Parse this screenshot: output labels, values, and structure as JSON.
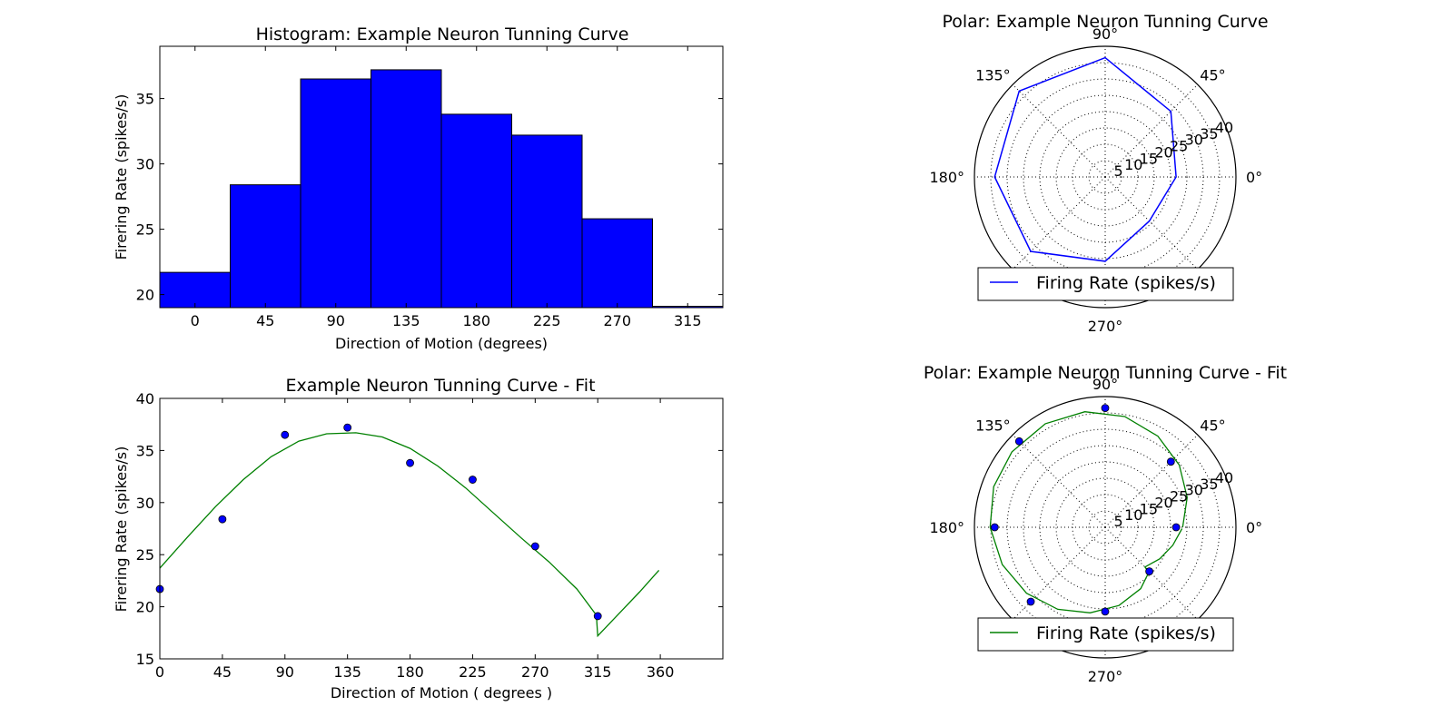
{
  "chart_data": [
    {
      "type": "bar",
      "title": "Histogram: Example Neuron Tunning Curve",
      "xlabel": "Direction of Motion (degrees)",
      "ylabel": "Firering Rate (spikes/s)",
      "categories": [
        0,
        45,
        90,
        135,
        180,
        225,
        270,
        315
      ],
      "values": [
        21.7,
        28.4,
        36.5,
        37.2,
        33.8,
        32.2,
        25.8,
        19.1
      ],
      "bar_color": "#0000ff",
      "ylim": [
        19,
        39
      ],
      "yticks": [
        20,
        25,
        30,
        35
      ],
      "xticks": [
        "0",
        "45",
        "90",
        "135",
        "180",
        "225",
        "270",
        "315"
      ]
    },
    {
      "type": "polar-line",
      "title": "Polar: Example Neuron Tunning Curve",
      "angles_deg": [
        0,
        45,
        90,
        135,
        180,
        225,
        270,
        315
      ],
      "radii": [
        21.7,
        28.4,
        36.5,
        37.2,
        33.8,
        32.2,
        25.8,
        19.1
      ],
      "line_color": "#0000ff",
      "rmax": 40,
      "rticks": [
        "5",
        "10",
        "15",
        "20",
        "25",
        "30",
        "35",
        "40"
      ],
      "angle_labels": [
        "0°",
        "45°",
        "90°",
        "135°",
        "180°",
        "270°"
      ],
      "legend": {
        "label": "Firing Rate (spikes/s)",
        "loc": "lower center"
      }
    },
    {
      "type": "line+scatter",
      "title": "Example Neuron Tunning Curve - Fit",
      "xlabel": "Direction of Motion ( degrees )",
      "ylabel": "Firering Rate (spikes/s)",
      "scatter": {
        "x": [
          0,
          45,
          90,
          135,
          180,
          225,
          270,
          315
        ],
        "y": [
          21.7,
          28.4,
          36.5,
          37.2,
          33.8,
          32.2,
          25.8,
          19.1
        ],
        "color": "#0000ff"
      },
      "fit": {
        "x": [
          0,
          20,
          40,
          60,
          80,
          100,
          120,
          141,
          160,
          180,
          200,
          220,
          240,
          260,
          280,
          300,
          314,
          315,
          330,
          345,
          359
        ],
        "y": [
          23.7,
          26.7,
          29.6,
          32.2,
          34.4,
          35.9,
          36.6,
          36.7,
          36.3,
          35.2,
          33.5,
          31.4,
          29.0,
          26.6,
          24.3,
          21.7,
          19.2,
          17.2,
          19.3,
          21.4,
          23.5
        ],
        "color": "#008000"
      },
      "xlim": [
        0,
        405
      ],
      "ylim": [
        15,
        40
      ],
      "xticks": [
        "0",
        "45",
        "90",
        "135",
        "180",
        "225",
        "270",
        "315",
        "360"
      ],
      "yticks": [
        "15",
        "20",
        "25",
        "30",
        "35",
        "40"
      ]
    },
    {
      "type": "polar-scatter+fit",
      "title": "Polar: Example Neuron Tunning Curve - Fit",
      "scatter": {
        "angles_deg": [
          0,
          45,
          90,
          135,
          180,
          225,
          270,
          315
        ],
        "radii": [
          21.7,
          28.4,
          36.5,
          37.2,
          33.8,
          32.2,
          25.8,
          19.1
        ],
        "color": "#0000ff"
      },
      "fit": {
        "angles_deg": [
          0,
          20,
          40,
          60,
          80,
          100,
          120,
          141,
          160,
          180,
          200,
          220,
          240,
          260,
          280,
          300,
          314,
          315,
          330,
          345,
          359
        ],
        "radii": [
          23.7,
          26.7,
          29.6,
          32.2,
          34.4,
          35.9,
          36.6,
          36.7,
          36.3,
          35.2,
          33.5,
          31.4,
          29.0,
          26.6,
          24.3,
          21.7,
          19.2,
          17.2,
          19.3,
          21.4,
          23.5
        ],
        "color": "#008000"
      },
      "rmax": 40,
      "rticks": [
        "5",
        "10",
        "15",
        "20",
        "25",
        "30",
        "35",
        "40"
      ],
      "angle_labels": [
        "0°",
        "45°",
        "90°",
        "135°",
        "180°",
        "270°"
      ],
      "legend": {
        "label": "Firing Rate (spikes/s)",
        "loc": "lower center"
      }
    }
  ]
}
